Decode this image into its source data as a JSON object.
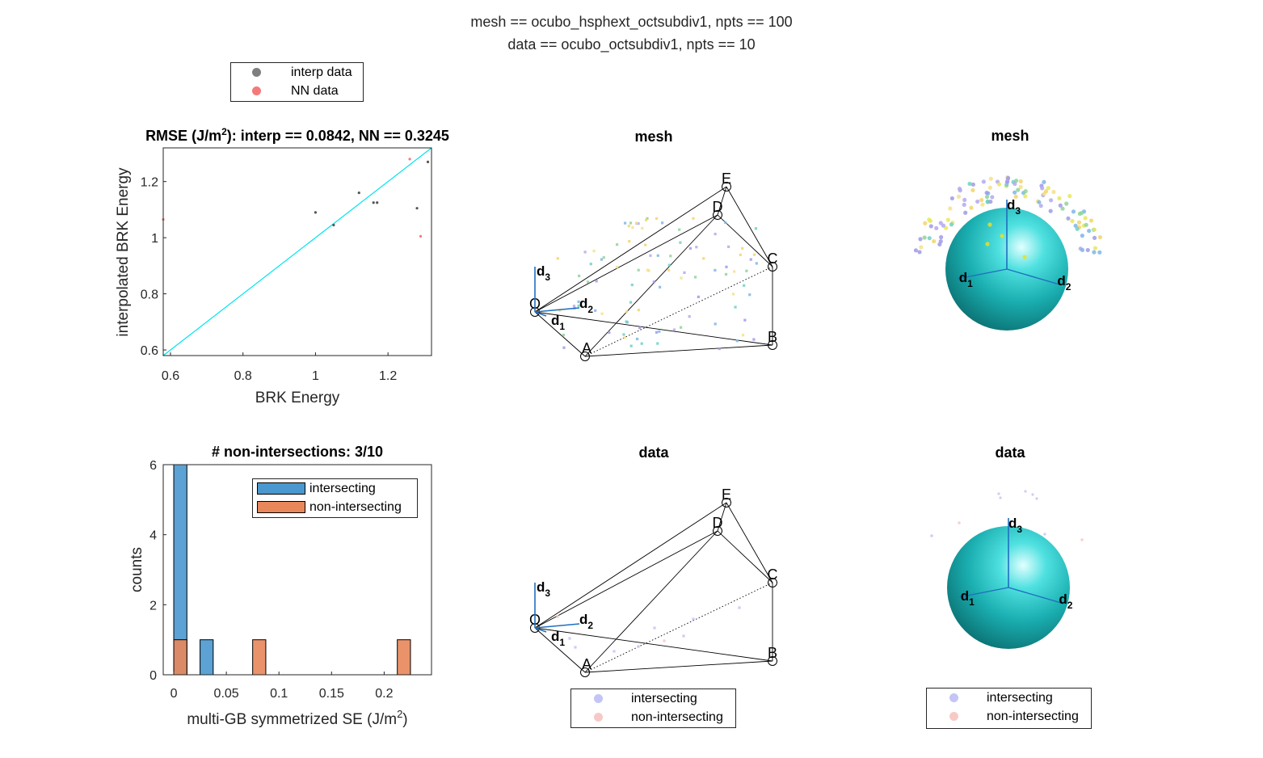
{
  "figure": {
    "suptitle_line1": "mesh == ocubo_hsphext_octsubdiv1, npts == 100",
    "suptitle_line2": "data == ocubo_octsubdiv1, npts == 10"
  },
  "top_legend": {
    "items": [
      {
        "label": "interp data",
        "color": "#7f7f7f"
      },
      {
        "label": "NN data",
        "color": "#f47a7a"
      }
    ]
  },
  "chart_data": [
    {
      "type": "scatter",
      "title_main": "RMSE (J/m",
      "title_sup": "2",
      "title_rest": "): interp == 0.0842, NN == 0.3245",
      "xlabel": "BRK Energy",
      "ylabel": "interpolated BRK Energy",
      "xlim": [
        0.58,
        1.32
      ],
      "ylim": [
        0.58,
        1.32
      ],
      "xticks": [
        0.6,
        0.8,
        1,
        1.2
      ],
      "yticks": [
        0.6,
        0.8,
        1,
        1.2
      ],
      "ytick_labels": [
        "0.6",
        "0.8",
        "1",
        "1.2"
      ],
      "xtick_labels": [
        "0.6",
        "0.8",
        "1",
        "1.2"
      ],
      "reference_line_color": "#00e5ee",
      "series": [
        {
          "name": "interp data",
          "color": "#555555",
          "points": [
            [
              1.0,
              1.09
            ],
            [
              1.05,
              1.045
            ],
            [
              1.12,
              1.16
            ],
            [
              1.16,
              1.125
            ],
            [
              1.17,
              1.125
            ],
            [
              1.28,
              1.105
            ],
            [
              1.31,
              1.27
            ]
          ]
        },
        {
          "name": "NN data",
          "color": "#f47a7a",
          "points": [
            [
              1.26,
              1.28
            ],
            [
              1.29,
              1.005
            ],
            [
              0.58,
              1.065
            ]
          ]
        }
      ]
    },
    {
      "type": "bar",
      "title": "# non-intersections: 3/10",
      "xlabel_main": "multi-GB symmetrized SE (J/m",
      "xlabel_sup": "2",
      "xlabel_rest": ")",
      "ylabel": "counts",
      "xlim": [
        -0.01,
        0.245
      ],
      "ylim": [
        0,
        6
      ],
      "xticks": [
        0,
        0.05,
        0.1,
        0.15,
        0.2
      ],
      "xtick_labels": [
        "0",
        "0.05",
        "0.1",
        "0.15",
        "0.2"
      ],
      "yticks": [
        0,
        2,
        4,
        6
      ],
      "ytick_labels": [
        "0",
        "2",
        "4",
        "6"
      ],
      "bin_width": 0.0125,
      "series": [
        {
          "name": "intersecting",
          "color": "#4a98cf",
          "bins": [
            {
              "x0": 0,
              "count": 6
            },
            {
              "x0": 0.025,
              "count": 1
            }
          ]
        },
        {
          "name": "non-intersecting",
          "color": "#e8875a",
          "bins": [
            {
              "x0": 0,
              "count": 1
            },
            {
              "x0": 0.075,
              "count": 1
            },
            {
              "x0": 0.2125,
              "count": 1
            }
          ]
        }
      ]
    }
  ],
  "panels_3d": {
    "mesh_title": "mesh",
    "data_title": "data",
    "vertex_labels": [
      "O",
      "A",
      "B",
      "C",
      "D",
      "E"
    ],
    "axis_labels": [
      "d",
      "d",
      "d"
    ],
    "axis_subs": [
      "1",
      "2",
      "3"
    ]
  },
  "hist_legend": {
    "items": [
      {
        "label": "intersecting",
        "color": "#4a98cf"
      },
      {
        "label": "non-intersecting",
        "color": "#e8875a"
      }
    ]
  },
  "bottom_legend": {
    "items": [
      {
        "label": "intersecting",
        "color": "#c4c4f5"
      },
      {
        "label": "non-intersecting",
        "color": "#f7c9c6"
      }
    ]
  }
}
